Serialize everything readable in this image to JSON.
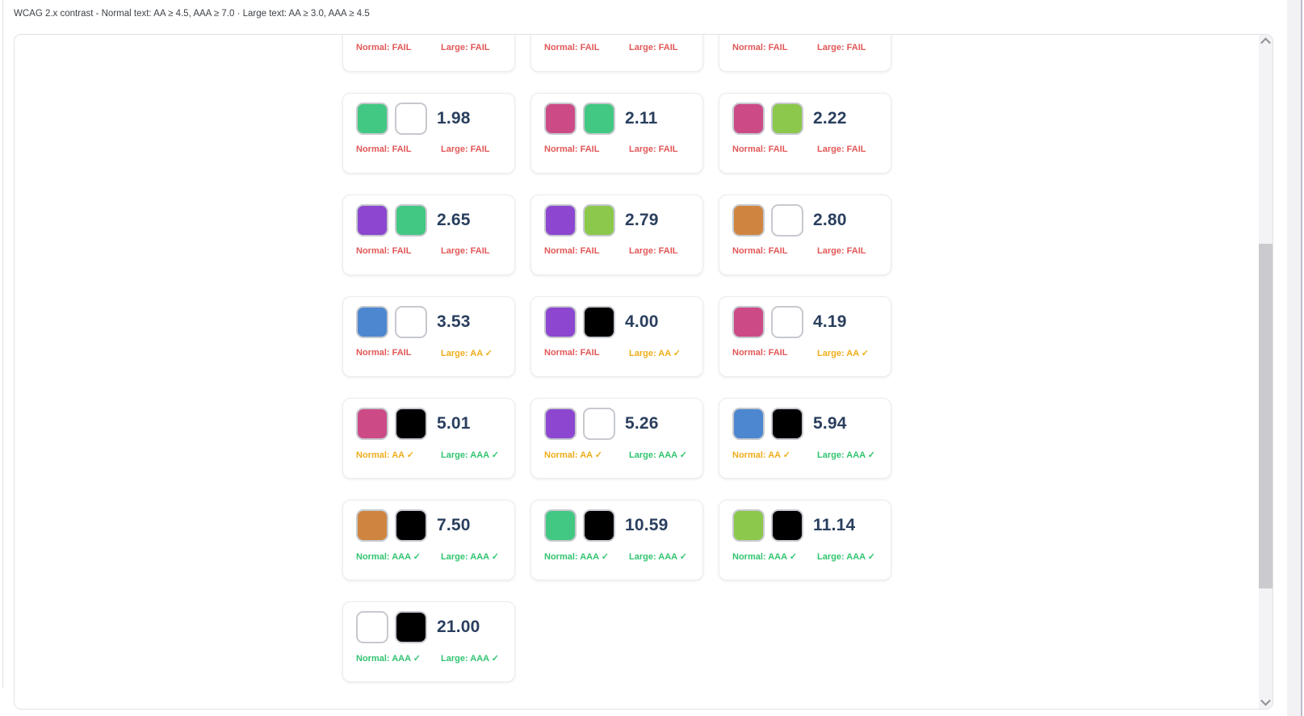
{
  "header": {
    "title": "WCAG 2.x contrast - Normal text: AA ≥ 4.5, AAA ≥ 7.0 · Large text: AA ≥ 3.0, AAA ≥ 4.5"
  },
  "status_colors": {
    "FAIL": "#e25757",
    "AA": "#eead1a",
    "AAA": "#31c470"
  },
  "cards": [
    {
      "normal_status": "FAIL",
      "large_status": "FAIL",
      "normal_label": "Normal: FAIL",
      "large_label": "Large: FAIL"
    },
    {
      "normal_status": "FAIL",
      "large_status": "FAIL",
      "normal_label": "Normal: FAIL",
      "large_label": "Large: FAIL"
    },
    {
      "normal_status": "FAIL",
      "large_status": "FAIL",
      "normal_label": "Normal: FAIL",
      "large_label": "Large: FAIL"
    },
    {
      "ratio": "1.98",
      "color1": "#42c882",
      "color2": "#ffffff",
      "normal_status": "FAIL",
      "large_status": "FAIL",
      "normal_label": "Normal: FAIL",
      "large_label": "Large: FAIL"
    },
    {
      "ratio": "2.11",
      "color1": "#cc4b87",
      "color2": "#42c882",
      "normal_status": "FAIL",
      "large_status": "FAIL",
      "normal_label": "Normal: FAIL",
      "large_label": "Large: FAIL"
    },
    {
      "ratio": "2.22",
      "color1": "#cc4b87",
      "color2": "#8cc84b",
      "normal_status": "FAIL",
      "large_status": "FAIL",
      "normal_label": "Normal: FAIL",
      "large_label": "Large: FAIL"
    },
    {
      "ratio": "2.65",
      "color1": "#8c46cf",
      "color2": "#42c882",
      "normal_status": "FAIL",
      "large_status": "FAIL",
      "normal_label": "Normal: FAIL",
      "large_label": "Large: FAIL"
    },
    {
      "ratio": "2.79",
      "color1": "#8c46cf",
      "color2": "#8cc84b",
      "normal_status": "FAIL",
      "large_status": "FAIL",
      "normal_label": "Normal: FAIL",
      "large_label": "Large: FAIL"
    },
    {
      "ratio": "2.80",
      "color1": "#cf853f",
      "color2": "#ffffff",
      "normal_status": "FAIL",
      "large_status": "FAIL",
      "normal_label": "Normal: FAIL",
      "large_label": "Large: FAIL"
    },
    {
      "ratio": "3.53",
      "color1": "#4c87d0",
      "color2": "#ffffff",
      "normal_status": "FAIL",
      "large_status": "AA",
      "normal_label": "Normal: FAIL",
      "large_label": "Large: AA ✓"
    },
    {
      "ratio": "4.00",
      "color1": "#8c46cf",
      "color2": "#000000",
      "normal_status": "FAIL",
      "large_status": "AA",
      "normal_label": "Normal: FAIL",
      "large_label": "Large: AA ✓"
    },
    {
      "ratio": "4.19",
      "color1": "#cc4b87",
      "color2": "#ffffff",
      "normal_status": "FAIL",
      "large_status": "AA",
      "normal_label": "Normal: FAIL",
      "large_label": "Large: AA ✓"
    },
    {
      "ratio": "5.01",
      "color1": "#cc4b87",
      "color2": "#000000",
      "normal_status": "AA",
      "large_status": "AAA",
      "normal_label": "Normal: AA ✓",
      "large_label": "Large: AAA ✓"
    },
    {
      "ratio": "5.26",
      "color1": "#8c46cf",
      "color2": "#ffffff",
      "normal_status": "AA",
      "large_status": "AAA",
      "normal_label": "Normal: AA ✓",
      "large_label": "Large: AAA ✓"
    },
    {
      "ratio": "5.94",
      "color1": "#4c87d0",
      "color2": "#000000",
      "normal_status": "AA",
      "large_status": "AAA",
      "normal_label": "Normal: AA ✓",
      "large_label": "Large: AAA ✓"
    },
    {
      "ratio": "7.50",
      "color1": "#cf853f",
      "color2": "#000000",
      "normal_status": "AAA",
      "large_status": "AAA",
      "normal_label": "Normal: AAA ✓",
      "large_label": "Large: AAA ✓"
    },
    {
      "ratio": "10.59",
      "color1": "#42c882",
      "color2": "#000000",
      "normal_status": "AAA",
      "large_status": "AAA",
      "normal_label": "Normal: AAA ✓",
      "large_label": "Large: AAA ✓"
    },
    {
      "ratio": "11.14",
      "color1": "#8cc84b",
      "color2": "#000000",
      "normal_status": "AAA",
      "large_status": "AAA",
      "normal_label": "Normal: AAA ✓",
      "large_label": "Large: AAA ✓"
    },
    {
      "ratio": "21.00",
      "color1": "#ffffff",
      "color2": "#000000",
      "normal_status": "AAA",
      "large_status": "AAA",
      "normal_label": "Normal: AAA ✓",
      "large_label": "Large: AAA ✓"
    }
  ]
}
